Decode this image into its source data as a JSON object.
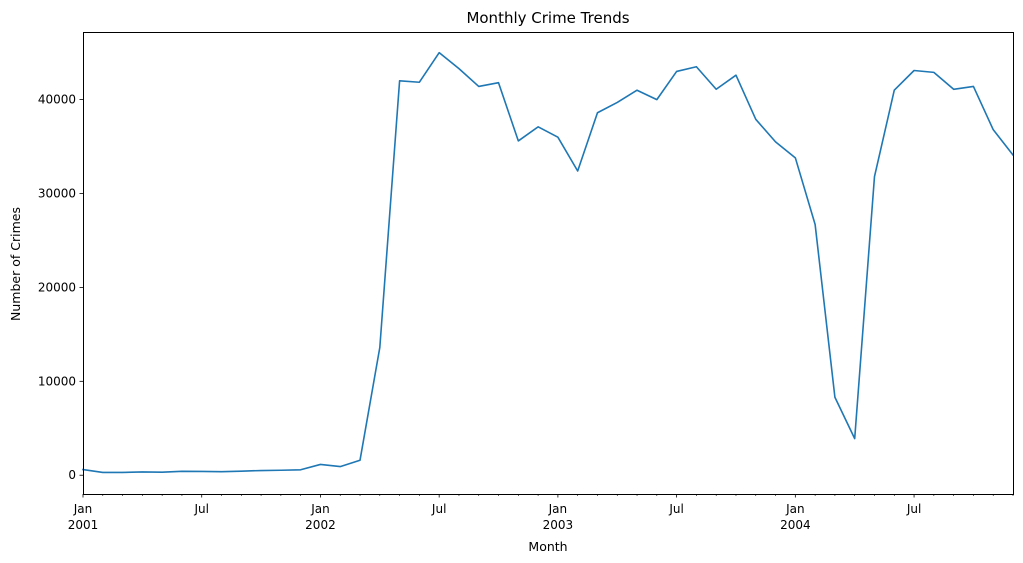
{
  "chart_data": {
    "type": "line",
    "title": "Monthly Crime Trends",
    "xlabel": "Month",
    "ylabel": "Number of Crimes",
    "ylim": [
      -2000,
      47200
    ],
    "xlim": [
      "2001-01",
      "2004-12"
    ],
    "grid": false,
    "legend": "none",
    "color": "#1f77b4",
    "yticks": [
      0,
      10000,
      20000,
      30000,
      40000
    ],
    "ytick_labels": [
      "0",
      "10000",
      "20000",
      "30000",
      "40000"
    ],
    "xticks_major": [
      {
        "x": "2001-01",
        "label": "Jan",
        "sublabel": "2001"
      },
      {
        "x": "2001-07",
        "label": "Jul",
        "sublabel": ""
      },
      {
        "x": "2002-01",
        "label": "Jan",
        "sublabel": "2002"
      },
      {
        "x": "2002-07",
        "label": "Jul",
        "sublabel": ""
      },
      {
        "x": "2003-01",
        "label": "Jan",
        "sublabel": "2003"
      },
      {
        "x": "2003-07",
        "label": "Jul",
        "sublabel": ""
      },
      {
        "x": "2004-01",
        "label": "Jan",
        "sublabel": "2004"
      },
      {
        "x": "2004-07",
        "label": "Jul",
        "sublabel": ""
      }
    ],
    "x": [
      "2001-01",
      "2001-02",
      "2001-03",
      "2001-04",
      "2001-05",
      "2001-06",
      "2001-07",
      "2001-08",
      "2001-09",
      "2001-10",
      "2001-11",
      "2001-12",
      "2002-01",
      "2002-02",
      "2002-03",
      "2002-04",
      "2002-05",
      "2002-06",
      "2002-07",
      "2002-08",
      "2002-09",
      "2002-10",
      "2002-11",
      "2002-12",
      "2003-01",
      "2003-02",
      "2003-03",
      "2003-04",
      "2003-05",
      "2003-06",
      "2003-07",
      "2003-08",
      "2003-09",
      "2003-10",
      "2003-11",
      "2003-12",
      "2004-01",
      "2004-02",
      "2004-03",
      "2004-04",
      "2004-05",
      "2004-06",
      "2004-07",
      "2004-08",
      "2004-09",
      "2004-10",
      "2004-11",
      "2004-12"
    ],
    "series": [
      {
        "values": [
          600,
          300,
          300,
          350,
          320,
          420,
          400,
          380,
          430,
          500,
          530,
          580,
          1150,
          920,
          1600,
          13600,
          42000,
          41850,
          45000,
          43300,
          41400,
          41800,
          35600,
          37100,
          36000,
          32400,
          38600,
          39700,
          41000,
          40000,
          43000,
          43500,
          41100,
          42600,
          37900,
          35500,
          33800,
          26700,
          8300,
          3900,
          31800,
          41000,
          43100,
          42900,
          41100,
          41400,
          36800,
          34100
        ]
      }
    ]
  }
}
